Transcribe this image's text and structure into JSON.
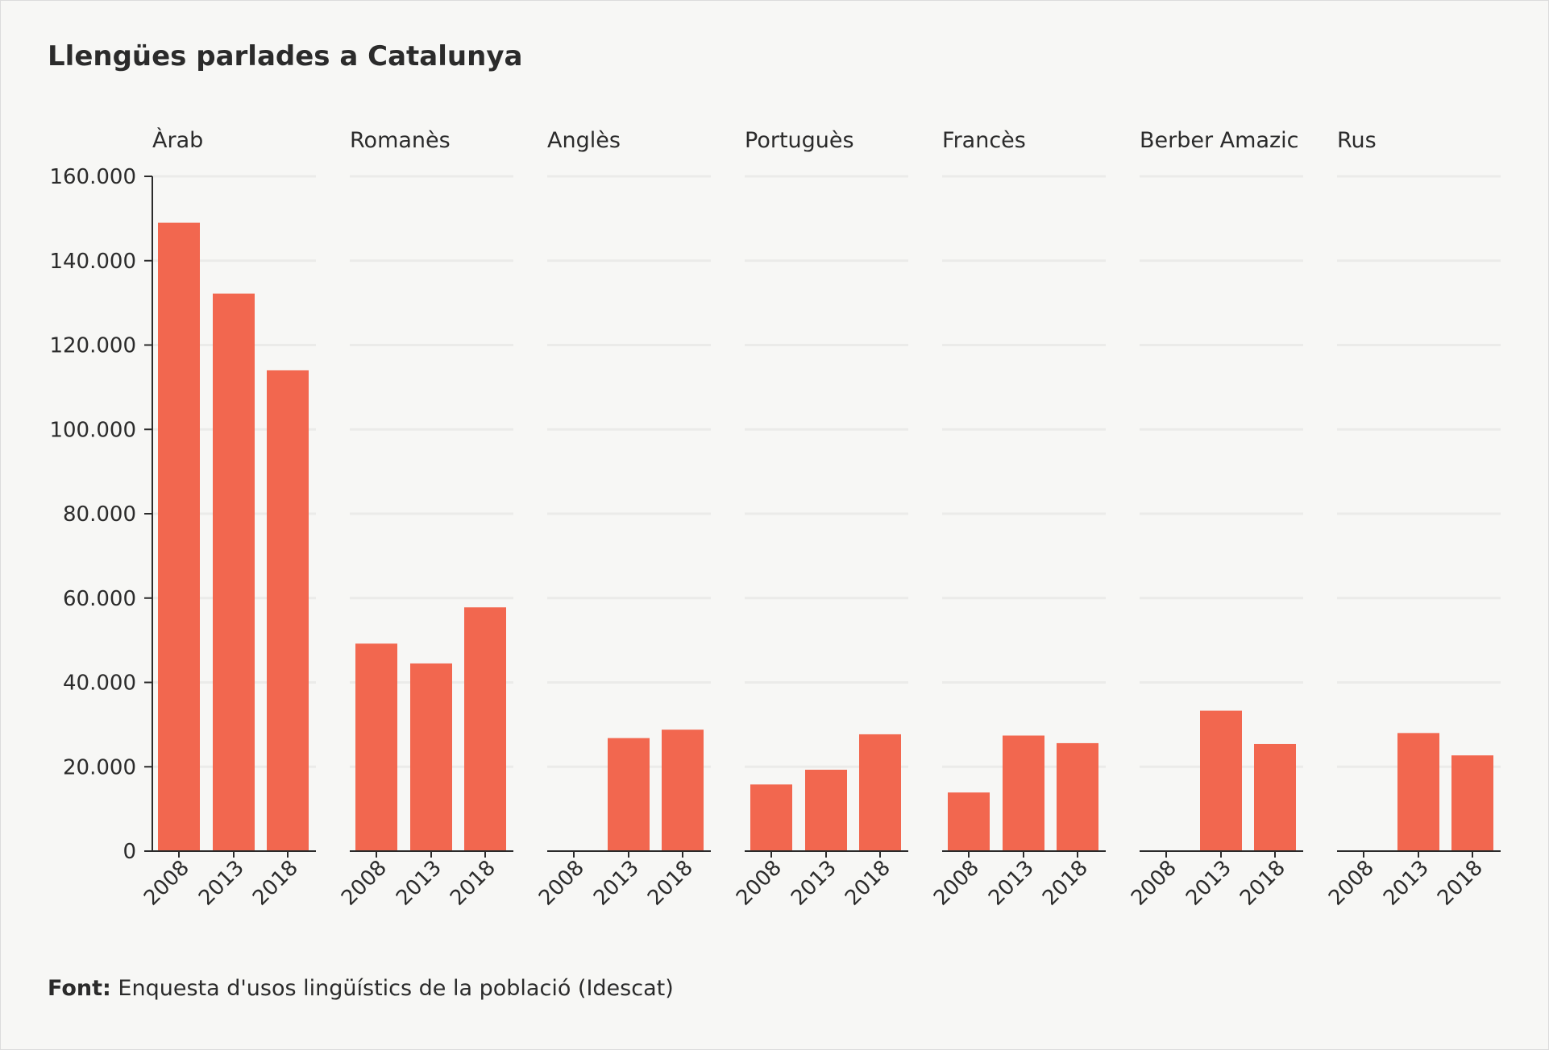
{
  "chart_data": {
    "type": "bar",
    "title": "Llengües parlades a Catalunya",
    "facets": [
      "Àrab",
      "Romanès",
      "Anglès",
      "Portuguès",
      "Francès",
      "Berber Amazic",
      "Rus"
    ],
    "categories": [
      "2008",
      "2013",
      "2018"
    ],
    "series": [
      {
        "facet": "Àrab",
        "values": [
          149000,
          132200,
          114000
        ]
      },
      {
        "facet": "Romanès",
        "values": [
          49200,
          44500,
          57800
        ]
      },
      {
        "facet": "Anglès",
        "values": [
          0,
          26800,
          28800
        ]
      },
      {
        "facet": "Portuguès",
        "values": [
          15800,
          19300,
          27700
        ]
      },
      {
        "facet": "Francès",
        "values": [
          13900,
          27400,
          25600
        ]
      },
      {
        "facet": "Berber Amazic",
        "values": [
          0,
          33300,
          25400
        ]
      },
      {
        "facet": "Rus",
        "values": [
          0,
          28000,
          22700
        ]
      }
    ],
    "yticks": [
      "0",
      "20.000",
      "40.000",
      "60.000",
      "80.000",
      "100.000",
      "120.000",
      "140.000",
      "160.000"
    ],
    "ylim": [
      0,
      160000
    ],
    "grid": true,
    "color": "#f2674f"
  },
  "source": {
    "label": "Font:",
    "text": "Enquesta d'usos lingüístics de la població (Idescat)"
  }
}
